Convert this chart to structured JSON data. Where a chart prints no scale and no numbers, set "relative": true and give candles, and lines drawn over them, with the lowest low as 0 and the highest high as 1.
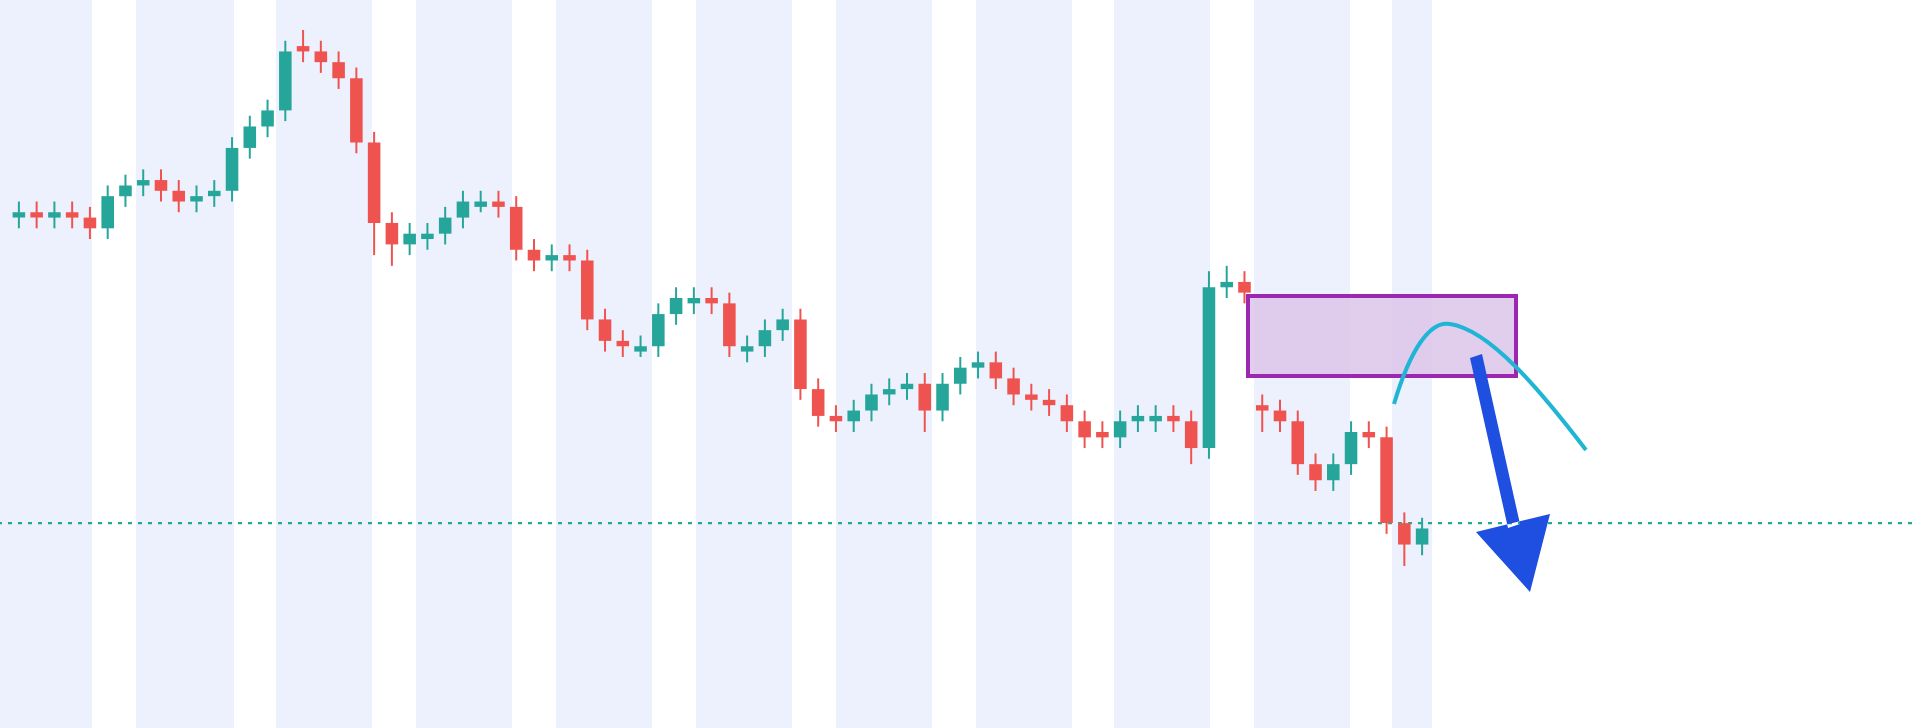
{
  "chart_data": {
    "type": "candlestick",
    "relative": true,
    "categories": [
      null,
      null,
      null,
      null,
      null,
      null,
      null,
      null,
      null,
      null,
      null,
      null,
      null,
      null,
      null,
      null,
      null,
      null,
      null,
      null,
      null,
      null,
      null,
      null,
      null,
      null,
      null,
      null,
      null,
      null,
      null,
      null,
      null,
      null,
      null,
      null,
      null,
      null,
      null,
      null,
      null,
      null,
      null,
      null,
      null,
      null,
      null,
      null,
      null,
      null,
      null,
      null,
      null,
      null,
      null,
      null,
      null,
      null,
      null,
      null,
      null,
      null,
      null,
      null,
      null,
      null,
      null,
      null,
      null,
      null,
      null,
      null,
      null,
      null,
      null,
      null,
      null,
      null,
      null,
      null
    ],
    "ohlc": [
      [
        0.65,
        0.68,
        0.63,
        0.66
      ],
      [
        0.66,
        0.68,
        0.63,
        0.65
      ],
      [
        0.65,
        0.68,
        0.63,
        0.66
      ],
      [
        0.66,
        0.68,
        0.63,
        0.65
      ],
      [
        0.65,
        0.67,
        0.61,
        0.63
      ],
      [
        0.63,
        0.71,
        0.61,
        0.69
      ],
      [
        0.69,
        0.73,
        0.67,
        0.71
      ],
      [
        0.71,
        0.74,
        0.69,
        0.72
      ],
      [
        0.72,
        0.74,
        0.68,
        0.7
      ],
      [
        0.7,
        0.72,
        0.66,
        0.68
      ],
      [
        0.68,
        0.71,
        0.66,
        0.69
      ],
      [
        0.69,
        0.72,
        0.67,
        0.7
      ],
      [
        0.7,
        0.8,
        0.68,
        0.78
      ],
      [
        0.78,
        0.84,
        0.76,
        0.82
      ],
      [
        0.82,
        0.87,
        0.8,
        0.85
      ],
      [
        0.85,
        0.98,
        0.83,
        0.96
      ],
      [
        0.97,
        1.0,
        0.94,
        0.96
      ],
      [
        0.96,
        0.98,
        0.92,
        0.94
      ],
      [
        0.94,
        0.96,
        0.89,
        0.91
      ],
      [
        0.91,
        0.93,
        0.77,
        0.79
      ],
      [
        0.79,
        0.81,
        0.58,
        0.64
      ],
      [
        0.64,
        0.66,
        0.56,
        0.6
      ],
      [
        0.6,
        0.64,
        0.58,
        0.62
      ],
      [
        0.61,
        0.64,
        0.59,
        0.62
      ],
      [
        0.62,
        0.67,
        0.6,
        0.65
      ],
      [
        0.65,
        0.7,
        0.63,
        0.68
      ],
      [
        0.67,
        0.7,
        0.66,
        0.68
      ],
      [
        0.68,
        0.7,
        0.65,
        0.67
      ],
      [
        0.67,
        0.69,
        0.57,
        0.59
      ],
      [
        0.59,
        0.61,
        0.55,
        0.57
      ],
      [
        0.57,
        0.6,
        0.55,
        0.58
      ],
      [
        0.58,
        0.6,
        0.55,
        0.57
      ],
      [
        0.57,
        0.59,
        0.44,
        0.46
      ],
      [
        0.46,
        0.48,
        0.4,
        0.42
      ],
      [
        0.42,
        0.44,
        0.39,
        0.41
      ],
      [
        0.4,
        0.43,
        0.39,
        0.41
      ],
      [
        0.41,
        0.49,
        0.39,
        0.47
      ],
      [
        0.47,
        0.52,
        0.45,
        0.5
      ],
      [
        0.49,
        0.52,
        0.47,
        0.5
      ],
      [
        0.5,
        0.52,
        0.47,
        0.49
      ],
      [
        0.49,
        0.51,
        0.39,
        0.41
      ],
      [
        0.4,
        0.43,
        0.38,
        0.41
      ],
      [
        0.41,
        0.46,
        0.39,
        0.44
      ],
      [
        0.44,
        0.48,
        0.42,
        0.46
      ],
      [
        0.46,
        0.48,
        0.31,
        0.33
      ],
      [
        0.33,
        0.35,
        0.26,
        0.28
      ],
      [
        0.28,
        0.3,
        0.25,
        0.27
      ],
      [
        0.27,
        0.31,
        0.25,
        0.29
      ],
      [
        0.29,
        0.34,
        0.27,
        0.32
      ],
      [
        0.32,
        0.35,
        0.3,
        0.33
      ],
      [
        0.33,
        0.36,
        0.31,
        0.34
      ],
      [
        0.34,
        0.36,
        0.25,
        0.29
      ],
      [
        0.29,
        0.36,
        0.27,
        0.34
      ],
      [
        0.34,
        0.39,
        0.32,
        0.37
      ],
      [
        0.37,
        0.4,
        0.35,
        0.38
      ],
      [
        0.38,
        0.4,
        0.33,
        0.35
      ],
      [
        0.35,
        0.37,
        0.3,
        0.32
      ],
      [
        0.32,
        0.34,
        0.29,
        0.31
      ],
      [
        0.31,
        0.33,
        0.28,
        0.3
      ],
      [
        0.3,
        0.32,
        0.25,
        0.27
      ],
      [
        0.27,
        0.29,
        0.22,
        0.24
      ],
      [
        0.25,
        0.27,
        0.22,
        0.24
      ],
      [
        0.24,
        0.29,
        0.22,
        0.27
      ],
      [
        0.27,
        0.3,
        0.25,
        0.28
      ],
      [
        0.27,
        0.3,
        0.25,
        0.28
      ],
      [
        0.28,
        0.3,
        0.25,
        0.27
      ],
      [
        0.27,
        0.29,
        0.19,
        0.22
      ],
      [
        0.22,
        0.55,
        0.2,
        0.52
      ],
      [
        0.52,
        0.56,
        0.5,
        0.53
      ],
      [
        0.53,
        0.55,
        0.49,
        0.51
      ],
      [
        0.3,
        0.32,
        0.25,
        0.29
      ],
      [
        0.29,
        0.31,
        0.25,
        0.27
      ],
      [
        0.27,
        0.29,
        0.17,
        0.19
      ],
      [
        0.19,
        0.21,
        0.14,
        0.16
      ],
      [
        0.16,
        0.21,
        0.14,
        0.19
      ],
      [
        0.19,
        0.27,
        0.17,
        0.25
      ],
      [
        0.25,
        0.27,
        0.22,
        0.24
      ],
      [
        0.24,
        0.26,
        0.06,
        0.08
      ],
      [
        0.08,
        0.1,
        0.0,
        0.04
      ],
      [
        0.04,
        0.09,
        0.02,
        0.07
      ]
    ],
    "colors": [
      "#26a69a",
      "#ef5350",
      "#26a69a",
      "#ef5350",
      "#ef5350",
      "#26a69a",
      "#26a69a",
      "#26a69a",
      "#ef5350",
      "#ef5350",
      "#26a69a",
      "#26a69a",
      "#26a69a",
      "#26a69a",
      "#26a69a",
      "#26a69a",
      "#ef5350",
      "#ef5350",
      "#ef5350",
      "#ef5350",
      "#ef5350",
      "#ef5350",
      "#26a69a",
      "#26a69a",
      "#26a69a",
      "#26a69a",
      "#26a69a",
      "#ef5350",
      "#ef5350",
      "#ef5350",
      "#26a69a",
      "#ef5350",
      "#ef5350",
      "#ef5350",
      "#ef5350",
      "#26a69a",
      "#26a69a",
      "#26a69a",
      "#26a69a",
      "#ef5350",
      "#ef5350",
      "#26a69a",
      "#26a69a",
      "#26a69a",
      "#ef5350",
      "#ef5350",
      "#ef5350",
      "#26a69a",
      "#26a69a",
      "#26a69a",
      "#26a69a",
      "#ef5350",
      "#26a69a",
      "#26a69a",
      "#26a69a",
      "#ef5350",
      "#ef5350",
      "#ef5350",
      "#ef5350",
      "#ef5350",
      "#ef5350",
      "#ef5350",
      "#26a69a",
      "#26a69a",
      "#26a69a",
      "#ef5350",
      "#ef5350",
      "#26a69a",
      "#26a69a",
      "#ef5350",
      "#ef5350",
      "#ef5350",
      "#ef5350",
      "#ef5350",
      "#26a69a",
      "#26a69a",
      "#ef5350",
      "#ef5350",
      "#ef5350",
      "#26a69a"
    ],
    "ref_lines": [
      {
        "axis": "y",
        "value": 0.08,
        "color": "#22ab94",
        "line_style": "dotted"
      }
    ]
  }
}
